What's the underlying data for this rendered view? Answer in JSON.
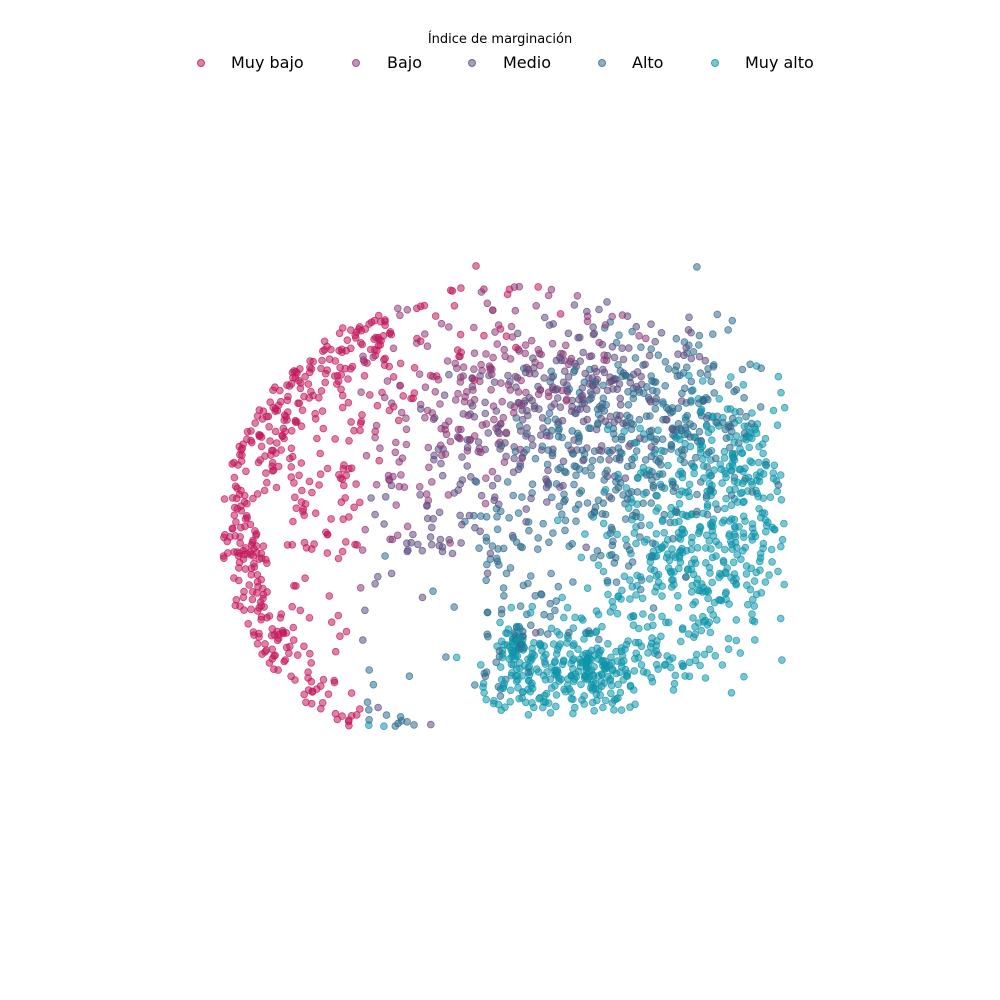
{
  "chart_data": {
    "type": "scatter",
    "legend_title": "Índice de marginación",
    "legend_position": "top-center",
    "axes_visible": false,
    "grid": false,
    "marker_alpha": 0.55,
    "series": [
      {
        "name": "Muy bajo",
        "color": "#c2185b"
      },
      {
        "name": "Bajo",
        "color": "#8e3b78"
      },
      {
        "name": "Medio",
        "color": "#5f4d80"
      },
      {
        "name": "Alto",
        "color": "#2f6d8e"
      },
      {
        "name": "Muy alto",
        "color": "#0f95ab"
      }
    ]
  }
}
